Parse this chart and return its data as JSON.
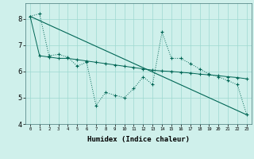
{
  "xlabel": "Humidex (Indice chaleur)",
  "x_values": [
    0,
    1,
    2,
    3,
    4,
    5,
    6,
    7,
    8,
    9,
    10,
    11,
    12,
    13,
    14,
    15,
    16,
    17,
    18,
    19,
    20,
    21,
    22,
    23
  ],
  "line1_y": [
    8.1,
    8.2,
    6.6,
    6.65,
    6.55,
    6.2,
    6.35,
    4.7,
    5.2,
    5.1,
    5.0,
    5.35,
    5.8,
    5.5,
    7.5,
    6.5,
    6.5,
    6.3,
    6.1,
    5.9,
    5.8,
    5.65,
    5.5,
    4.35
  ],
  "line2_x": [
    0,
    23
  ],
  "line2_y": [
    8.1,
    4.35
  ],
  "line3_y": [
    8.1,
    6.6,
    6.55,
    6.5,
    6.5,
    6.45,
    6.4,
    6.35,
    6.3,
    6.25,
    6.2,
    6.15,
    6.1,
    6.05,
    6.02,
    6.0,
    5.97,
    5.94,
    5.9,
    5.87,
    5.84,
    5.8,
    5.77,
    5.72
  ],
  "bg_color": "#cff0eb",
  "grid_color": "#9dd8d0",
  "line_color": "#006655",
  "ylim": [
    4,
    8.6
  ],
  "xlim": [
    -0.5,
    23.5
  ]
}
